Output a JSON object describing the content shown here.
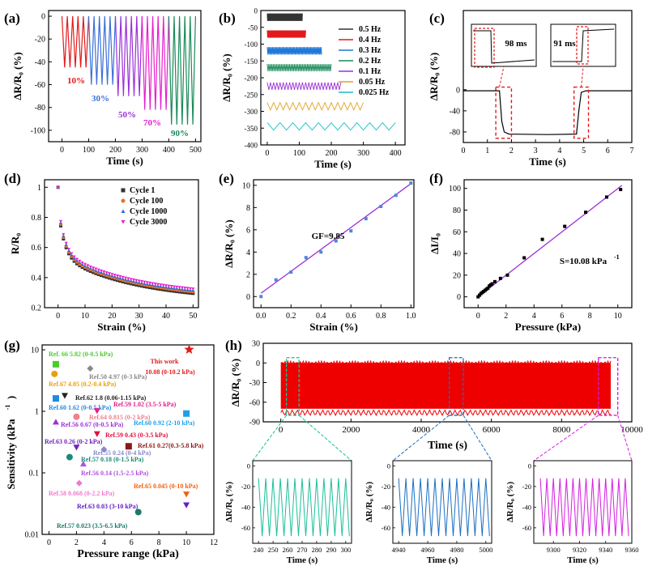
{
  "chart_data": [
    {
      "panel": "(a)",
      "type": "line",
      "xlabel": "Time (s)",
      "ylabel": "ΔR/R₀ (%)",
      "xlim": [
        -50,
        520
      ],
      "ylim": [
        -110,
        5
      ],
      "xticks": [
        0,
        100,
        200,
        300,
        400,
        500
      ],
      "yticks": [
        0,
        -20,
        -40,
        -60,
        -80,
        -100
      ],
      "series": [
        {
          "name": "10%",
          "color": "#e31a1c",
          "x_start": 0,
          "x_end": 100,
          "min": -45,
          "cycles": 5
        },
        {
          "name": "30%",
          "color": "#3b6fd8",
          "x_start": 100,
          "x_end": 200,
          "min": -60,
          "cycles": 5
        },
        {
          "name": "50%",
          "color": "#9b30d9",
          "x_start": 200,
          "x_end": 300,
          "min": -70,
          "cycles": 5
        },
        {
          "name": "70%",
          "color": "#e81ed0",
          "x_start": 300,
          "x_end": 400,
          "min": -82,
          "cycles": 5
        },
        {
          "name": "90%",
          "color": "#1a8a5a",
          "x_start": 400,
          "x_end": 500,
          "min": -95,
          "cycles": 5
        }
      ]
    },
    {
      "panel": "(b)",
      "type": "line",
      "xlabel": "Time (s)",
      "ylabel": "ΔR/R₀ (%)",
      "xlim": [
        -20,
        430
      ],
      "ylim": [
        -400,
        0
      ],
      "xticks": [
        0,
        100,
        200,
        300,
        400
      ],
      "yticks": [
        0,
        -50,
        -100,
        -150,
        -200,
        -250,
        -300,
        -350,
        -400
      ],
      "series": [
        {
          "name": "0.5 Hz",
          "color": "#333333",
          "offset": -20,
          "x_end": 110,
          "period": 2
        },
        {
          "name": "0.4 Hz",
          "color": "#e31a1c",
          "offset": -70,
          "x_end": 120,
          "period": 2.5
        },
        {
          "name": "0.3 Hz",
          "color": "#1f78d8",
          "offset": -120,
          "x_end": 170,
          "period": 3.3
        },
        {
          "name": "0.2 Hz",
          "color": "#1a8a5a",
          "offset": -170,
          "x_end": 200,
          "period": 5
        },
        {
          "name": "0.1 Hz",
          "color": "#9b30d9",
          "offset": -225,
          "x_end": 230,
          "period": 10
        },
        {
          "name": "0.05 Hz",
          "color": "#e0a020",
          "offset": -285,
          "x_end": 300,
          "period": 20
        },
        {
          "name": "0.025 Hz",
          "color": "#18c0c0",
          "offset": -345,
          "x_end": 400,
          "period": 40
        }
      ]
    },
    {
      "panel": "(c)",
      "type": "line",
      "xlabel": "Time (s)",
      "ylabel": "ΔR/R₀ (%)",
      "xlim": [
        0,
        7
      ],
      "ylim": [
        -100,
        150
      ],
      "xticks": [
        0,
        1,
        2,
        3,
        4,
        5,
        6,
        7
      ],
      "yticks": [
        0,
        -40,
        -80
      ],
      "x": [
        0,
        1.5,
        1.6,
        1.7,
        1.9,
        3.5,
        4.7,
        4.8,
        4.9,
        5.1,
        7
      ],
      "y": [
        -2,
        -2,
        -60,
        -80,
        -84,
        -85,
        -84,
        -40,
        -5,
        -2,
        -2
      ],
      "insets": [
        "98 ms",
        "91 ms"
      ]
    },
    {
      "panel": "(d)",
      "type": "scatter",
      "xlabel": "Strain (%)",
      "ylabel": "R/R₀",
      "xlim": [
        -5,
        52
      ],
      "ylim": [
        0.2,
        1.05
      ],
      "xticks": [
        0,
        10,
        20,
        30,
        40,
        50
      ],
      "yticks": [
        0.2,
        0.4,
        0.6,
        0.8,
        1.0
      ],
      "series": [
        {
          "name": "Cycle 1",
          "color": "#333333",
          "marker": "square",
          "shift": -0.01
        },
        {
          "name": "Cycle 100",
          "color": "#e8702a",
          "marker": "circle",
          "shift": 0.0
        },
        {
          "name": "Cycle 1000",
          "color": "#2b70d0",
          "marker": "triangle",
          "shift": 0.01
        },
        {
          "name": "Cycle 3000",
          "color": "#e81ed0",
          "marker": "tri-down",
          "shift": 0.02
        }
      ]
    },
    {
      "panel": "(e)",
      "type": "scatter",
      "xlabel": "Strain (%)",
      "ylabel": "ΔR/R₀ (%)",
      "xlim": [
        -0.05,
        1.02
      ],
      "ylim": [
        -1,
        10.5
      ],
      "xticks": [
        0.0,
        0.2,
        0.4,
        0.6,
        0.8,
        1.0
      ],
      "yticks": [
        0,
        2,
        4,
        6,
        8,
        10
      ],
      "x": [
        0.0,
        0.1,
        0.2,
        0.3,
        0.4,
        0.5,
        0.6,
        0.7,
        0.8,
        0.9,
        1.0
      ],
      "y": [
        0.0,
        1.5,
        2.2,
        3.5,
        4.0,
        5.0,
        5.9,
        7.0,
        8.1,
        9.1,
        10.2
      ],
      "fit_slope": 9.85,
      "fit_intercept": 0.3,
      "annotation": "GF=9.85"
    },
    {
      "panel": "(f)",
      "type": "scatter",
      "xlabel": "Pressure (kPa)",
      "ylabel": "ΔI/I₀",
      "xlim": [
        -1,
        11
      ],
      "ylim": [
        -10,
        108
      ],
      "xticks": [
        0,
        2,
        4,
        6,
        8,
        10
      ],
      "yticks": [
        0,
        20,
        40,
        60,
        80,
        100
      ],
      "x": [
        0,
        0.1,
        0.2,
        0.3,
        0.4,
        0.5,
        0.6,
        0.7,
        0.8,
        0.9,
        1.0,
        1.2,
        1.6,
        2.1,
        3.3,
        4.6,
        6.2,
        7.7,
        9.2,
        10.2
      ],
      "y": [
        0,
        1.5,
        3,
        4,
        5,
        6,
        7,
        8,
        10,
        11,
        12,
        14,
        17,
        20,
        36,
        53,
        65,
        78,
        92,
        99
      ],
      "fit_slope": 10.08,
      "fit_intercept": -1,
      "annotation": "S=10.08 kPa",
      "annotation_sup": "-1"
    },
    {
      "panel": "(g)",
      "type": "scatter",
      "xlabel": "Pressure range (kPa)",
      "ylabel": "Sensitivity (kPa",
      "ylabel_sup": "-1",
      "ylabel_end": ")",
      "xlim": [
        -0.5,
        12
      ],
      "ylim": [
        0.01,
        12
      ],
      "yscale": "log",
      "xticks": [
        0,
        2,
        4,
        6,
        8,
        10,
        12
      ],
      "yticks": [
        10,
        1,
        0.1,
        0.01
      ],
      "ytick_labels": [
        "10",
        "1",
        "0.1",
        "0.01"
      ],
      "points": [
        {
          "range": 10.2,
          "s": 10.08,
          "marker": "star",
          "color": "#e31a1c",
          "label": "This work",
          "label2": "10.08 (0-10.2 kPa)"
        },
        {
          "range": 0.5,
          "s": 5.82,
          "marker": "square",
          "color": "#4ccc2c",
          "label": "Ref. 66  5.82 (0-0.5 kPa)"
        },
        {
          "range": 0.4,
          "s": 4.05,
          "marker": "circle",
          "color": "#e8a010",
          "label": "Ref.67  4.05 (0.2-0.4 kPa)"
        },
        {
          "range": 3.0,
          "s": 4.97,
          "marker": "diamond",
          "color": "#888888",
          "label": "Ref.50  4.97 (0-3 kPa)"
        },
        {
          "range": 1.15,
          "s": 1.8,
          "marker": "tri-down",
          "color": "#222222",
          "label": "Ref.62  1.8 (0.06-1.15 kPa)"
        },
        {
          "range": 0.5,
          "s": 1.62,
          "marker": "square",
          "color": "#1f8ae0",
          "label": "Ref.60  1.62 (0-0.5 kPa)"
        },
        {
          "range": 3.5,
          "s": 1.02,
          "marker": "tri-down",
          "color": "#e0208a",
          "label": "Ref.59  1.02 (3.5-5 kPa)"
        },
        {
          "range": 0.5,
          "s": 0.67,
          "marker": "triangle",
          "color": "#9b30d9",
          "label": "Ref.56  0.67 (0-0.5 kPa)"
        },
        {
          "range": 2.0,
          "s": 0.815,
          "marker": "circle",
          "color": "#f0808a",
          "label": "Ref.64  0.815 (0-2 kPa)"
        },
        {
          "range": 10.0,
          "s": 0.92,
          "marker": "square",
          "color": "#1fa0e8",
          "label": "Ref.60  0.92 (2-10 kPa)"
        },
        {
          "range": 3.5,
          "s": 0.43,
          "marker": "tri-down",
          "color": "#e01040",
          "label": "Ref.59  0.43 (0-3.5 kPa)"
        },
        {
          "range": 2.0,
          "s": 0.26,
          "marker": "tri-down",
          "color": "#7020c0",
          "label": "Ref.63  0.26 (0-2 kPa)"
        },
        {
          "range": 5.8,
          "s": 0.27,
          "marker": "square",
          "color": "#8a1a10",
          "label": "Ref.61  0.27(0.3-5.8 kPa)"
        },
        {
          "range": 4.0,
          "s": 0.24,
          "marker": "diamond",
          "color": "#8888cc",
          "label": "Ref.55  0.24 (0-4 kPa)"
        },
        {
          "range": 1.5,
          "s": 0.18,
          "marker": "circle",
          "color": "#1a8a7a",
          "label": "Ref.57  0.18 (0-1.5 kPa)"
        },
        {
          "range": 2.5,
          "s": 0.14,
          "marker": "triangle",
          "color": "#b050e0",
          "label": "Ref.56  0.14 (1.5-2.5 kPa)"
        },
        {
          "range": 2.2,
          "s": 0.068,
          "marker": "diamond",
          "color": "#f07ad0",
          "label": "Ref.58  0.068 (0-2.2 kPa)"
        },
        {
          "range": 10.0,
          "s": 0.045,
          "marker": "tri-down",
          "color": "#f06010",
          "label": "Ref.65  0.045 (0-10 kPa)"
        },
        {
          "range": 10.0,
          "s": 0.03,
          "marker": "tri-down",
          "color": "#6020c8",
          "label": "Ref.63  0.03 (3-10 kPa)"
        },
        {
          "range": 6.5,
          "s": 0.023,
          "marker": "circle",
          "color": "#1a7a6a",
          "label": "Ref.57  0.023 (3.5-6.5 kPa)"
        }
      ]
    },
    {
      "panel": "(h)",
      "type": "line",
      "xlabel": "Time (s)",
      "ylabel": "ΔR/R₀ (%)",
      "xlim": [
        -500,
        10000
      ],
      "ylim": [
        -90,
        30
      ],
      "xticks": [
        0,
        2000,
        4000,
        6000,
        8000,
        10000
      ],
      "yticks": [
        30,
        0,
        -30,
        -60,
        -90
      ],
      "series_color": "#ee0000",
      "x_end": 9400,
      "min": -70,
      "max": 0,
      "insets": [
        {
          "color": "#1abf9a",
          "x_start": 240,
          "x_end": 300,
          "xticks": [
            240,
            250,
            260,
            270,
            280,
            290,
            300
          ],
          "yticks": [
            0,
            -20,
            -40,
            -60
          ],
          "ylim": [
            -75,
            5
          ],
          "period": 5,
          "min": -68
        },
        {
          "color": "#1a6fc0",
          "x_start": 4940,
          "x_end": 5000,
          "xticks": [
            4940,
            4960,
            4980,
            5000
          ],
          "yticks": [
            0,
            -20,
            -40,
            -60
          ],
          "ylim": [
            -75,
            5
          ],
          "period": 5,
          "min": -68
        },
        {
          "color": "#d51ee0",
          "x_start": 9290,
          "x_end": 9355,
          "xticks": [
            9300,
            9320,
            9340,
            9360
          ],
          "yticks": [
            0,
            -20,
            -40,
            -60
          ],
          "ylim": [
            -75,
            5
          ],
          "period": 5,
          "min": -68
        }
      ]
    }
  ]
}
